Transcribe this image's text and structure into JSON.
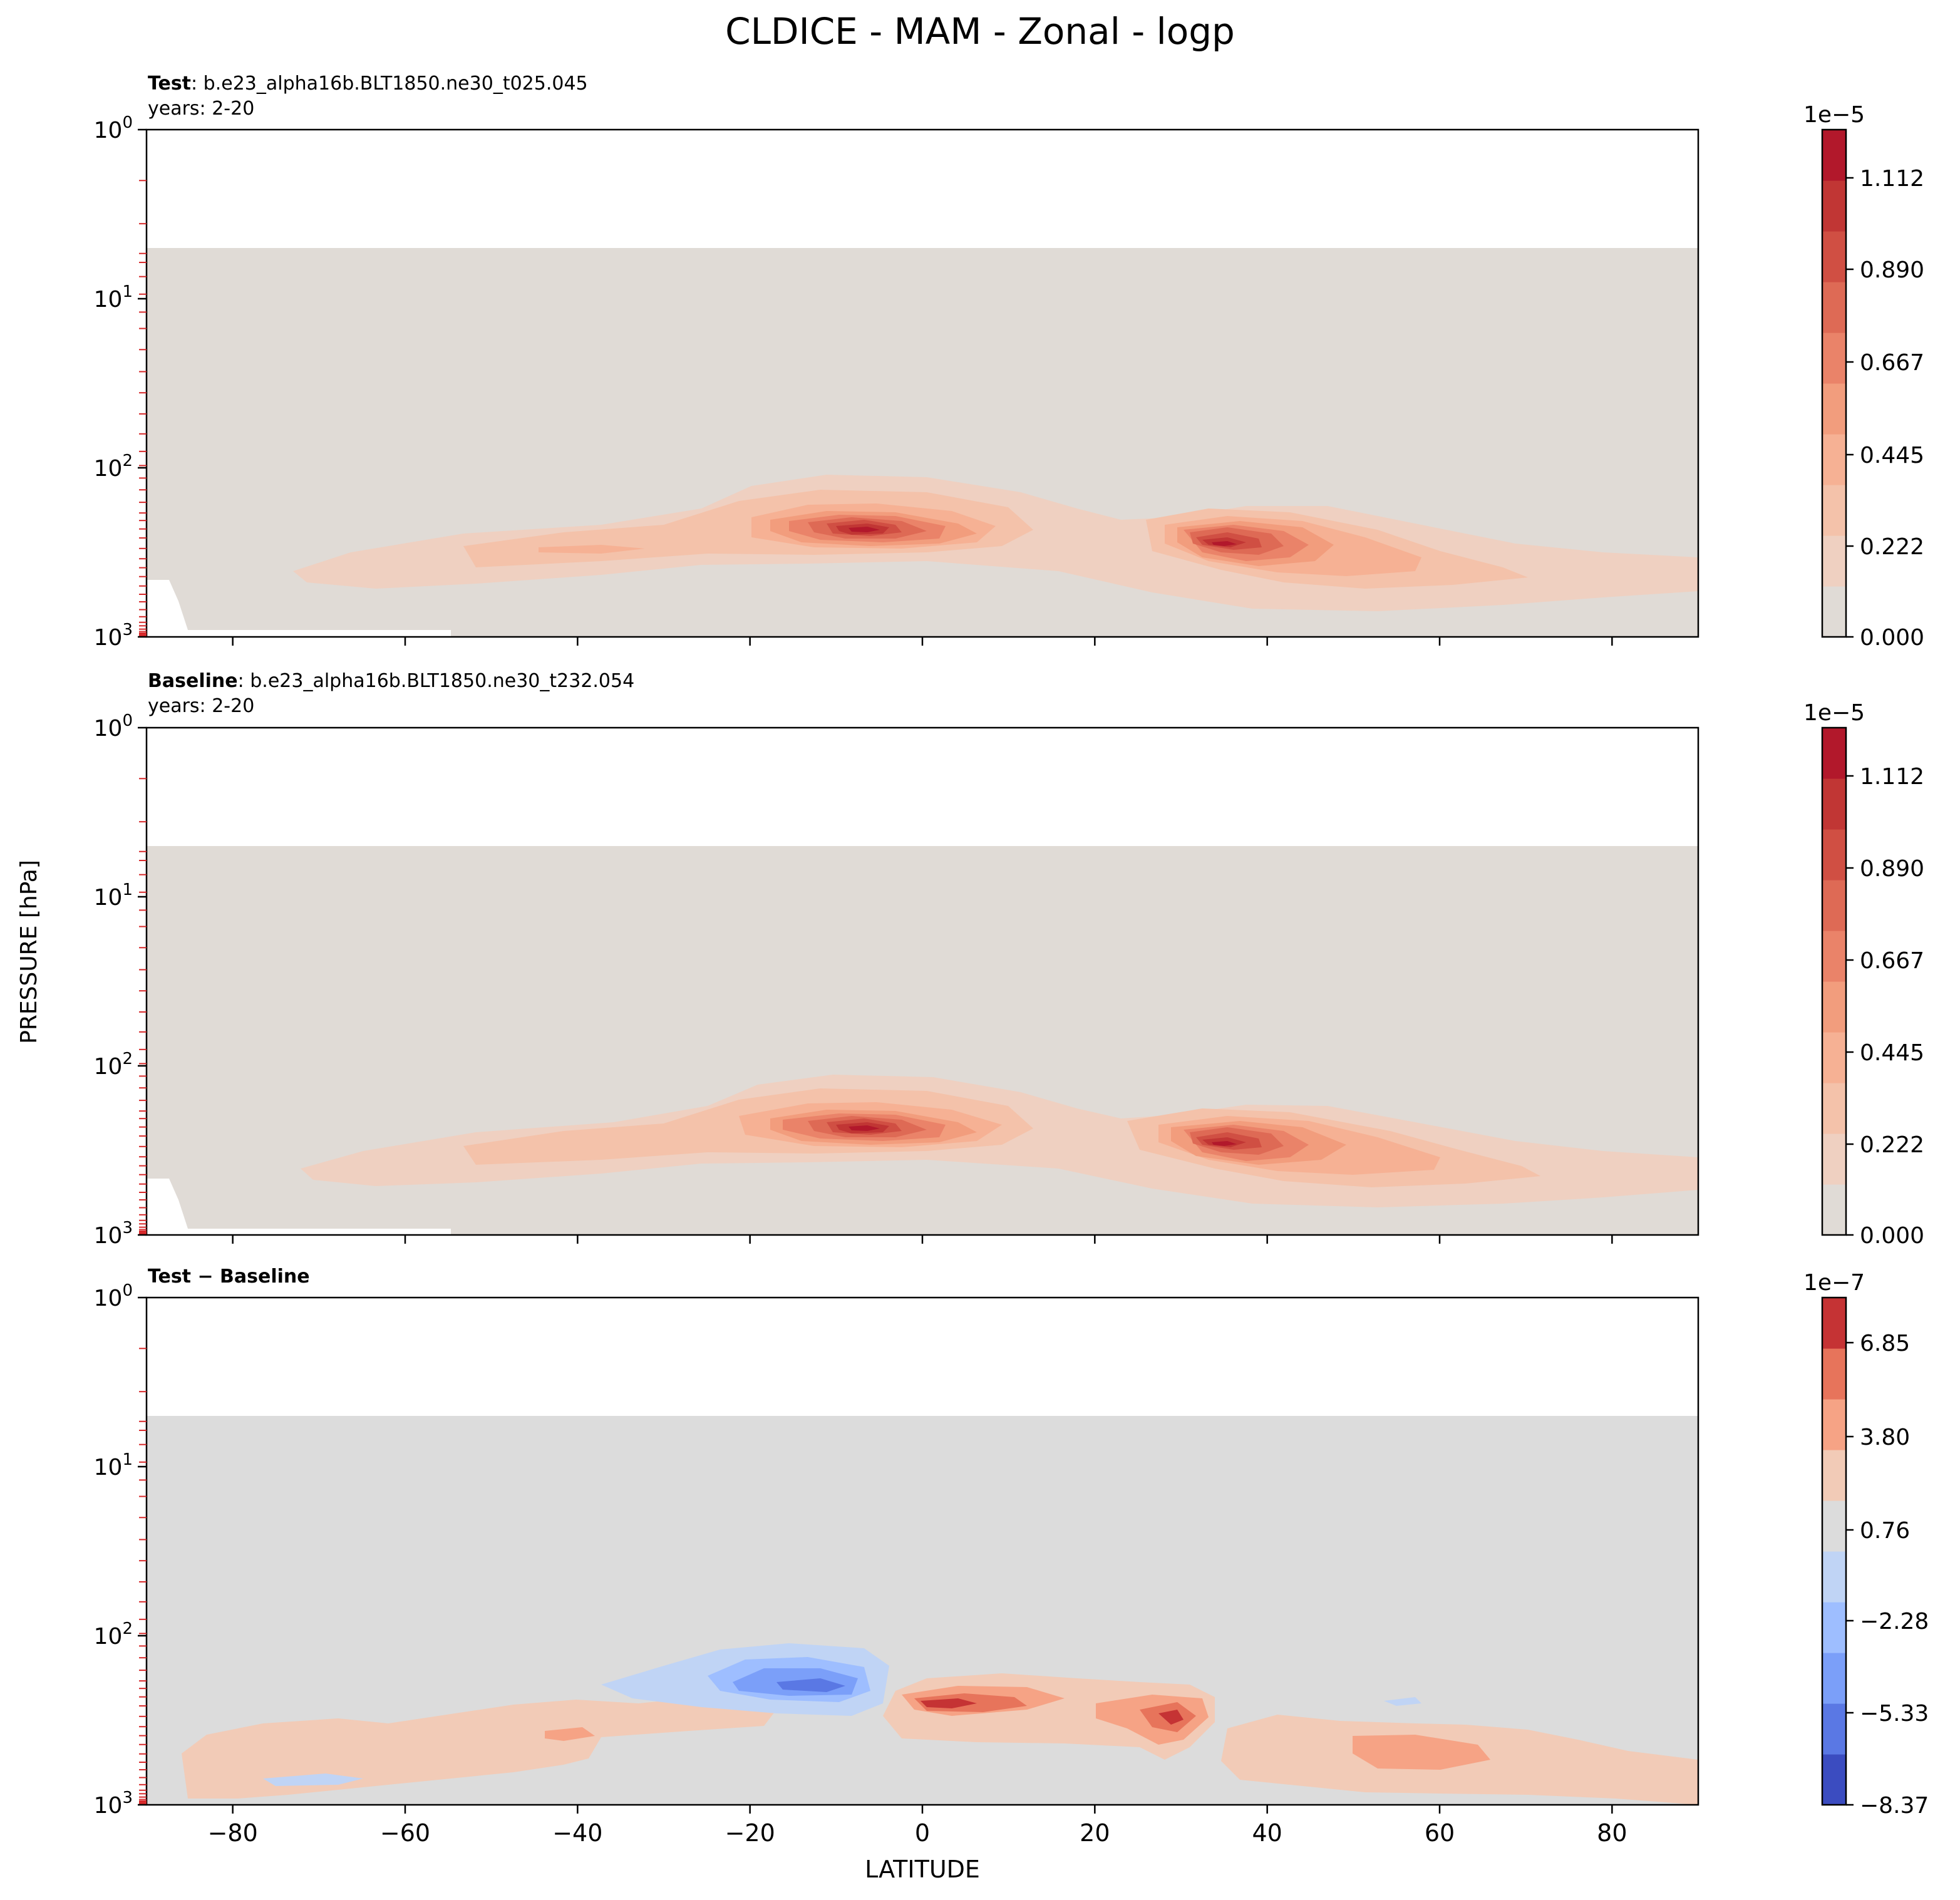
{
  "figure": {
    "title": "CLDICE - MAM - Zonal - logp",
    "xlabel": "LATITUDE",
    "ylabel": "PRESSURE [hPa]"
  },
  "chart_data": [
    {
      "type": "contour",
      "panel": "test",
      "label_bold": "Test",
      "label_rest": ": b.e23_alpha16b.BLT1850.ne30_t025.045",
      "years": "years: 2-20",
      "xlim": [
        -90,
        90
      ],
      "ylim_hpa": [
        1000,
        1
      ],
      "y_scale": "log",
      "x_ticks": [
        -80,
        -60,
        -40,
        -20,
        0,
        20,
        40,
        60,
        80
      ],
      "x_tick_labels_visible": false,
      "y_ticks": [
        {
          "value": 1,
          "base": "10",
          "exp": "0"
        },
        {
          "value": 10,
          "base": "10",
          "exp": "1"
        },
        {
          "value": 100,
          "base": "10",
          "exp": "2"
        },
        {
          "value": 1000,
          "base": "10",
          "exp": "3"
        }
      ],
      "model_top_hpa": 5,
      "surface_mask": true,
      "background_color": "#e0dbd6",
      "colorbar": {
        "multiplier_base": "1e",
        "multiplier_exp": "−5",
        "tick_labels": [
          "1.112",
          "0.890",
          "0.667",
          "0.445",
          "0.222",
          "0.000"
        ],
        "levels": [
          "#e0dbd6",
          "#efd0c1",
          "#f4c2aa",
          "#f6b194",
          "#f29d7d",
          "#ea8369",
          "#de6a55",
          "#d04f43",
          "#c13634",
          "#b2182b"
        ]
      },
      "features": [
        {
          "lat": -5,
          "pressure_hpa": 250,
          "peak_level": 10
        },
        {
          "lat": 35,
          "pressure_hpa": 320,
          "peak_level": 10
        },
        {
          "lat": -40,
          "pressure_hpa": 320,
          "peak_level": 3
        }
      ]
    },
    {
      "type": "contour",
      "panel": "baseline",
      "label_bold": "Baseline",
      "label_rest": ": b.e23_alpha16b.BLT1850.ne30_t232.054",
      "years": "years: 2-20",
      "xlim": [
        -90,
        90
      ],
      "ylim_hpa": [
        1000,
        1
      ],
      "y_scale": "log",
      "x_ticks": [
        -80,
        -60,
        -40,
        -20,
        0,
        20,
        40,
        60,
        80
      ],
      "x_tick_labels_visible": false,
      "y_ticks": [
        {
          "value": 1,
          "base": "10",
          "exp": "0"
        },
        {
          "value": 10,
          "base": "10",
          "exp": "1"
        },
        {
          "value": 100,
          "base": "10",
          "exp": "2"
        },
        {
          "value": 1000,
          "base": "10",
          "exp": "3"
        }
      ],
      "model_top_hpa": 5,
      "surface_mask": true,
      "background_color": "#e0dbd6",
      "colorbar": {
        "multiplier_base": "1e",
        "multiplier_exp": "−5",
        "tick_labels": [
          "1.112",
          "0.890",
          "0.667",
          "0.445",
          "0.222",
          "0.000"
        ],
        "levels": [
          "#e0dbd6",
          "#efd0c1",
          "#f4c2aa",
          "#f6b194",
          "#f29d7d",
          "#ea8369",
          "#de6a55",
          "#d04f43",
          "#c13634",
          "#b2182b"
        ]
      },
      "features": [
        {
          "lat": -5,
          "pressure_hpa": 250,
          "peak_level": 10
        },
        {
          "lat": 35,
          "pressure_hpa": 320,
          "peak_level": 10
        }
      ]
    },
    {
      "type": "contour",
      "panel": "difference",
      "label_bold": "Test − Baseline",
      "label_rest": "",
      "years": "",
      "xlim": [
        -90,
        90
      ],
      "ylim_hpa": [
        1000,
        1
      ],
      "y_scale": "log",
      "x_ticks": [
        -80,
        -60,
        -40,
        -20,
        0,
        20,
        40,
        60,
        80
      ],
      "x_tick_labels_visible": true,
      "y_ticks": [
        {
          "value": 1,
          "base": "10",
          "exp": "0"
        },
        {
          "value": 10,
          "base": "10",
          "exp": "1"
        },
        {
          "value": 100,
          "base": "10",
          "exp": "2"
        },
        {
          "value": 1000,
          "base": "10",
          "exp": "3"
        }
      ],
      "model_top_hpa": 5,
      "surface_mask": false,
      "background_color": "#dcdcdc",
      "colorbar": {
        "multiplier_base": "1e",
        "multiplier_exp": "−7",
        "tick_labels": [
          "6.85",
          "3.80",
          "0.76",
          "−2.28",
          "−5.33",
          "−8.37"
        ],
        "levels": [
          "#3b4cc0",
          "#5a78e4",
          "#7b9ff9",
          "#9ebeff",
          "#c0d4f5",
          "#dcdcdc",
          "#f2cbb7",
          "#f6a385",
          "#e7745b",
          "#c53334"
        ]
      },
      "features": [
        {
          "lat": -15,
          "pressure_hpa": 200,
          "sign": "negative"
        },
        {
          "lat": 2,
          "pressure_hpa": 270,
          "sign": "positive"
        },
        {
          "lat": 29,
          "pressure_hpa": 330,
          "sign": "positive"
        },
        {
          "lat": 55,
          "pressure_hpa": 500,
          "sign": "positive"
        },
        {
          "lat": -70,
          "pressure_hpa": 500,
          "sign": "positive"
        }
      ]
    }
  ]
}
